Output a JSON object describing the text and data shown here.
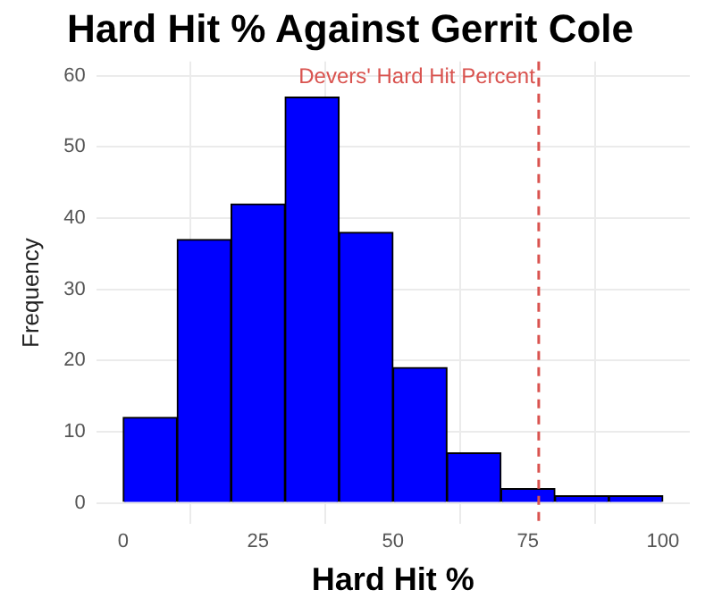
{
  "chart_data": {
    "type": "histogram",
    "title": "Hard Hit % Against Gerrit Cole",
    "xlabel": "Hard Hit %",
    "ylabel": "Frequency",
    "bins": [
      0,
      10,
      20,
      30,
      40,
      50,
      60,
      70,
      80,
      90,
      100
    ],
    "values": [
      12,
      37,
      42,
      57,
      38,
      19,
      7,
      2,
      1,
      1
    ],
    "color": "#0000ff",
    "xlim": [
      -5,
      105
    ],
    "xticks": [
      0,
      25,
      50,
      75,
      100
    ],
    "ylim": [
      -3,
      62
    ],
    "yticks": [
      0,
      10,
      20,
      30,
      40,
      50,
      60
    ],
    "grid": true,
    "legend": false,
    "ref_lines": [
      {
        "axis": "x",
        "value": 77,
        "label": "Devers' Hard Hit Percent",
        "color": "#d9534f",
        "line_style": "dashed"
      }
    ]
  }
}
